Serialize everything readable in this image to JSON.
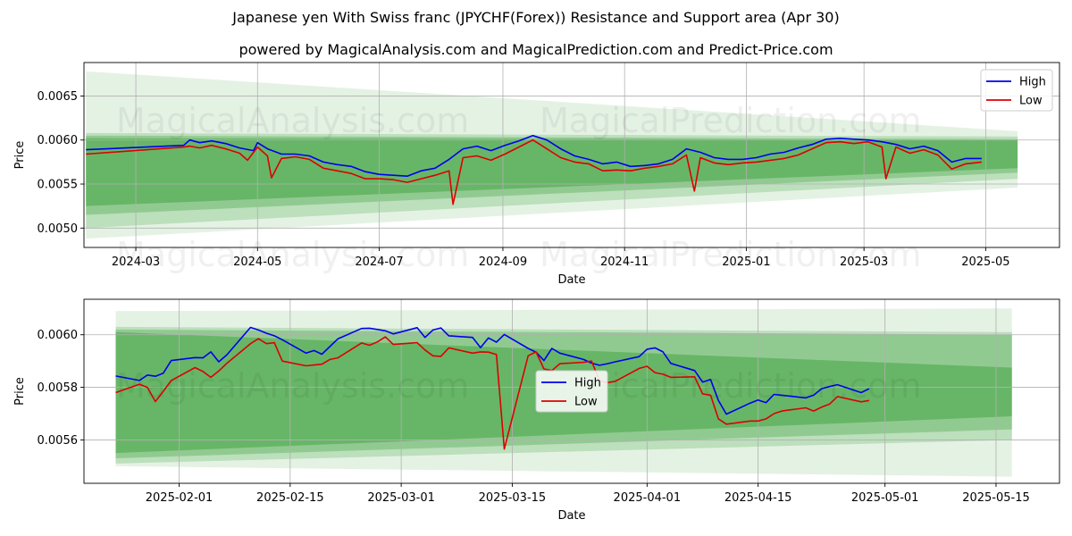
{
  "title": "Japanese yen With Swiss franc (JPYCHF(Forex)) Resistance and Support area (Apr 30)",
  "subtitle": "powered by MagicalAnalysis.com and MagicalPrediction.com and Predict-Price.com",
  "watermarks": [
    "MagicalAnalysis.com",
    "MagicalPrediction.com"
  ],
  "colors": {
    "high": "#0000ee",
    "low": "#dd0000",
    "band": "#2e9a2e",
    "grid": "#b0b0b0"
  },
  "chart_data": [
    {
      "type": "line",
      "xlabel": "Date",
      "ylabel": "Price",
      "x_range": [
        "2024-02-04",
        "2025-06-07"
      ],
      "ylim": [
        0.00478,
        0.00688
      ],
      "grid": true,
      "legend_placement": "top-right",
      "x_ticks": [
        "2024-03",
        "2024-05",
        "2024-07",
        "2024-09",
        "2024-11",
        "2025-01",
        "2025-03",
        "2025-05"
      ],
      "y_ticks": [
        "0.0050",
        "0.0055",
        "0.0060",
        "0.0065"
      ],
      "series": [
        {
          "name": "High",
          "x": [
            "2024-02-05",
            "2024-03-25",
            "2024-03-28",
            "2024-04-02",
            "2024-04-08",
            "2024-04-15",
            "2024-04-22",
            "2024-04-29",
            "2024-05-01",
            "2024-05-06",
            "2024-05-13",
            "2024-05-20",
            "2024-05-27",
            "2024-06-03",
            "2024-06-10",
            "2024-06-17",
            "2024-06-24",
            "2024-07-01",
            "2024-07-08",
            "2024-07-15",
            "2024-07-22",
            "2024-07-29",
            "2024-08-05",
            "2024-08-12",
            "2024-08-19",
            "2024-08-26",
            "2024-09-02",
            "2024-09-09",
            "2024-09-16",
            "2024-09-23",
            "2024-09-30",
            "2024-10-07",
            "2024-10-14",
            "2024-10-21",
            "2024-10-28",
            "2024-11-04",
            "2024-11-11",
            "2024-11-18",
            "2024-11-25",
            "2024-12-02",
            "2024-12-09",
            "2024-12-16",
            "2024-12-23",
            "2024-12-30",
            "2025-01-06",
            "2025-01-13",
            "2025-01-20",
            "2025-01-27",
            "2025-02-03",
            "2025-02-10",
            "2025-02-17",
            "2025-02-24",
            "2025-03-03",
            "2025-03-10",
            "2025-03-17",
            "2025-03-24",
            "2025-03-31",
            "2025-04-07",
            "2025-04-14",
            "2025-04-21",
            "2025-04-29"
          ],
          "values": [
            0.00589,
            0.00594,
            0.006,
            0.00597,
            0.00599,
            0.00596,
            0.00591,
            0.00588,
            0.00597,
            0.0059,
            0.00584,
            0.00584,
            0.00582,
            0.00575,
            0.00572,
            0.0057,
            0.00564,
            0.00561,
            0.0056,
            0.00559,
            0.00565,
            0.00568,
            0.00578,
            0.0059,
            0.00593,
            0.00588,
            0.00594,
            0.00599,
            0.00605,
            0.006,
            0.0059,
            0.00582,
            0.00578,
            0.00573,
            0.00575,
            0.0057,
            0.00571,
            0.00573,
            0.00578,
            0.0059,
            0.00586,
            0.0058,
            0.00578,
            0.00578,
            0.0058,
            0.00584,
            0.00586,
            0.00591,
            0.00595,
            0.00601,
            0.00602,
            0.00601,
            0.006,
            0.00598,
            0.00595,
            0.0059,
            0.00593,
            0.00588,
            0.00575,
            0.00579,
            0.00579
          ]
        },
        {
          "name": "Low",
          "x": [
            "2024-02-05",
            "2024-03-25",
            "2024-03-28",
            "2024-04-02",
            "2024-04-08",
            "2024-04-15",
            "2024-04-22",
            "2024-04-26",
            "2024-05-01",
            "2024-05-06",
            "2024-05-08",
            "2024-05-13",
            "2024-05-20",
            "2024-05-27",
            "2024-06-03",
            "2024-06-10",
            "2024-06-17",
            "2024-06-24",
            "2024-07-01",
            "2024-07-08",
            "2024-07-15",
            "2024-07-22",
            "2024-07-29",
            "2024-08-05",
            "2024-08-07",
            "2024-08-12",
            "2024-08-19",
            "2024-08-26",
            "2024-09-02",
            "2024-09-09",
            "2024-09-16",
            "2024-09-23",
            "2024-09-30",
            "2024-10-07",
            "2024-10-14",
            "2024-10-21",
            "2024-10-28",
            "2024-11-04",
            "2024-11-11",
            "2024-11-18",
            "2024-11-25",
            "2024-12-02",
            "2024-12-06",
            "2024-12-09",
            "2024-12-16",
            "2024-12-23",
            "2024-12-30",
            "2025-01-06",
            "2025-01-13",
            "2025-01-20",
            "2025-01-27",
            "2025-02-03",
            "2025-02-10",
            "2025-02-17",
            "2025-02-24",
            "2025-03-03",
            "2025-03-10",
            "2025-03-12",
            "2025-03-17",
            "2025-03-24",
            "2025-03-31",
            "2025-04-07",
            "2025-04-14",
            "2025-04-21",
            "2025-04-29"
          ],
          "values": [
            0.00584,
            0.00592,
            0.00593,
            0.00591,
            0.00594,
            0.0059,
            0.00585,
            0.00577,
            0.00592,
            0.00582,
            0.00557,
            0.00579,
            0.00581,
            0.00578,
            0.00568,
            0.00565,
            0.00562,
            0.00556,
            0.00556,
            0.00555,
            0.00552,
            0.00556,
            0.0056,
            0.00565,
            0.00527,
            0.0058,
            0.00582,
            0.00577,
            0.00584,
            0.00592,
            0.006,
            0.0059,
            0.0058,
            0.00575,
            0.00573,
            0.00565,
            0.00566,
            0.00565,
            0.00568,
            0.0057,
            0.00573,
            0.00583,
            0.00542,
            0.0058,
            0.00574,
            0.00572,
            0.00574,
            0.00575,
            0.00577,
            0.00579,
            0.00583,
            0.0059,
            0.00597,
            0.00598,
            0.00596,
            0.00598,
            0.00592,
            0.00556,
            0.00592,
            0.00585,
            0.00589,
            0.00583,
            0.00567,
            0.00573,
            0.00575
          ]
        }
      ]
    },
    {
      "type": "line",
      "xlabel": "Date",
      "ylabel": "Price",
      "x_range": [
        "2025-01-20",
        "2025-05-23"
      ],
      "ylim": [
        0.005435,
        0.006135
      ],
      "grid": true,
      "legend_placement": "center",
      "x_ticks": [
        "2025-02-01",
        "2025-02-15",
        "2025-03-01",
        "2025-03-15",
        "2025-04-01",
        "2025-04-15",
        "2025-05-01",
        "2025-05-15"
      ],
      "y_ticks": [
        "0.0056",
        "0.0058",
        "0.0060"
      ],
      "series": [
        {
          "name": "High",
          "x": [
            "2025-01-24",
            "2025-01-27",
            "2025-01-28",
            "2025-01-29",
            "2025-01-30",
            "2025-01-31",
            "2025-02-03",
            "2025-02-04",
            "2025-02-05",
            "2025-02-06",
            "2025-02-07",
            "2025-02-10",
            "2025-02-11",
            "2025-02-12",
            "2025-02-13",
            "2025-02-14",
            "2025-02-17",
            "2025-02-18",
            "2025-02-19",
            "2025-02-20",
            "2025-02-21",
            "2025-02-24",
            "2025-02-25",
            "2025-02-26",
            "2025-02-27",
            "2025-02-28",
            "2025-03-03",
            "2025-03-04",
            "2025-03-05",
            "2025-03-06",
            "2025-03-07",
            "2025-03-10",
            "2025-03-11",
            "2025-03-12",
            "2025-03-13",
            "2025-03-14",
            "2025-03-17",
            "2025-03-18",
            "2025-03-19",
            "2025-03-20",
            "2025-03-21",
            "2025-03-24",
            "2025-03-25",
            "2025-03-26",
            "2025-03-27",
            "2025-03-28",
            "2025-03-31",
            "2025-04-01",
            "2025-04-02",
            "2025-04-03",
            "2025-04-04",
            "2025-04-07",
            "2025-04-08",
            "2025-04-09",
            "2025-04-10",
            "2025-04-11",
            "2025-04-14",
            "2025-04-15",
            "2025-04-16",
            "2025-04-17",
            "2025-04-18",
            "2025-04-21",
            "2025-04-22",
            "2025-04-23",
            "2025-04-24",
            "2025-04-25",
            "2025-04-28",
            "2025-04-29"
          ],
          "values": [
            0.005843,
            0.005826,
            0.005847,
            0.005842,
            0.005854,
            0.005902,
            0.005913,
            0.005912,
            0.005935,
            0.005897,
            0.005923,
            0.006028,
            0.006018,
            0.006006,
            0.005996,
            0.005981,
            0.00593,
            0.00594,
            0.005926,
            0.005955,
            0.005984,
            0.006024,
            0.006025,
            0.00602,
            0.006015,
            0.006003,
            0.006027,
            0.00599,
            0.006018,
            0.006026,
            0.005996,
            0.00599,
            0.005951,
            0.005988,
            0.005972,
            0.006001,
            0.005948,
            0.005934,
            0.005902,
            0.005948,
            0.00593,
            0.005906,
            0.005892,
            0.005884,
            0.00589,
            0.005897,
            0.005917,
            0.005945,
            0.00595,
            0.005935,
            0.005891,
            0.005864,
            0.00582,
            0.00583,
            0.00575,
            0.005698,
            0.00574,
            0.005752,
            0.005742,
            0.005773,
            0.00577,
            0.00576,
            0.00577,
            0.005795,
            0.005803,
            0.00581,
            0.00578,
            0.005795
          ]
        },
        {
          "name": "Low",
          "x": [
            "2025-01-24",
            "2025-01-27",
            "2025-01-28",
            "2025-01-29",
            "2025-01-30",
            "2025-01-31",
            "2025-02-03",
            "2025-02-04",
            "2025-02-05",
            "2025-02-06",
            "2025-02-07",
            "2025-02-10",
            "2025-02-11",
            "2025-02-12",
            "2025-02-13",
            "2025-02-14",
            "2025-02-17",
            "2025-02-18",
            "2025-02-19",
            "2025-02-20",
            "2025-02-21",
            "2025-02-24",
            "2025-02-25",
            "2025-02-26",
            "2025-02-27",
            "2025-02-28",
            "2025-03-03",
            "2025-03-04",
            "2025-03-05",
            "2025-03-06",
            "2025-03-07",
            "2025-03-10",
            "2025-03-11",
            "2025-03-12",
            "2025-03-13",
            "2025-03-14",
            "2025-03-17",
            "2025-03-18",
            "2025-03-19",
            "2025-03-20",
            "2025-03-21",
            "2025-03-24",
            "2025-03-25",
            "2025-03-26",
            "2025-03-27",
            "2025-03-28",
            "2025-03-31",
            "2025-04-01",
            "2025-04-02",
            "2025-04-03",
            "2025-04-04",
            "2025-04-07",
            "2025-04-08",
            "2025-04-09",
            "2025-04-10",
            "2025-04-11",
            "2025-04-14",
            "2025-04-15",
            "2025-04-16",
            "2025-04-17",
            "2025-04-18",
            "2025-04-21",
            "2025-04-22",
            "2025-04-23",
            "2025-04-24",
            "2025-04-25",
            "2025-04-28",
            "2025-04-29"
          ],
          "values": [
            0.00578,
            0.005812,
            0.0058,
            0.005746,
            0.005785,
            0.005826,
            0.005875,
            0.00586,
            0.005838,
            0.005862,
            0.005891,
            0.005966,
            0.005985,
            0.005966,
            0.00597,
            0.0059,
            0.005882,
            0.005885,
            0.005888,
            0.005906,
            0.005912,
            0.005969,
            0.00596,
            0.005973,
            0.005992,
            0.005963,
            0.00597,
            0.005942,
            0.00592,
            0.005918,
            0.00595,
            0.00593,
            0.005935,
            0.005934,
            0.005925,
            0.005565,
            0.00592,
            0.005935,
            0.00587,
            0.005864,
            0.00589,
            0.005895,
            0.0059,
            0.005825,
            0.005818,
            0.005823,
            0.005872,
            0.00588,
            0.005856,
            0.00585,
            0.005838,
            0.00584,
            0.005775,
            0.00577,
            0.00568,
            0.00566,
            0.005672,
            0.005672,
            0.00568,
            0.0057,
            0.00571,
            0.005722,
            0.00571,
            0.005725,
            0.005736,
            0.005765,
            0.005745,
            0.00575
          ]
        }
      ]
    }
  ]
}
